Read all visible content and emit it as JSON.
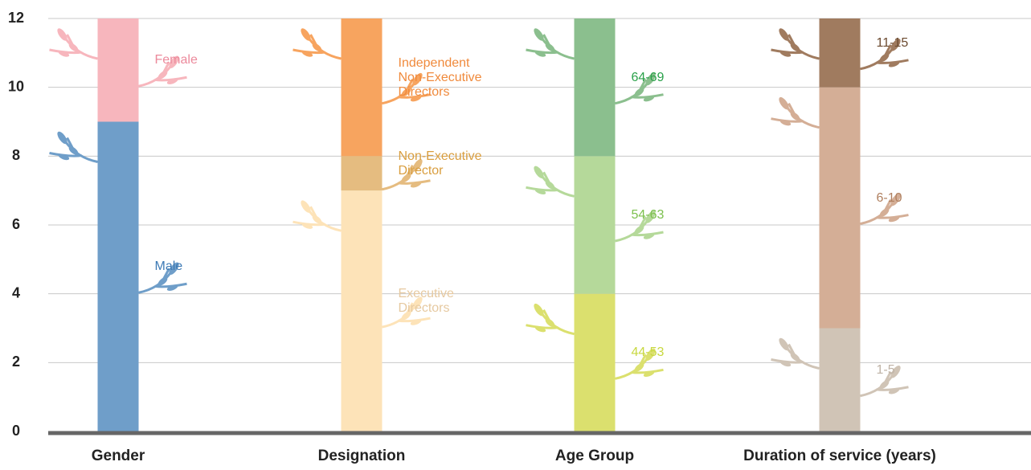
{
  "chart_data": {
    "type": "stacked-bar",
    "categories": [
      "Gender",
      "Designation",
      "Age Group",
      "Duration of service (years)"
    ],
    "ylim": [
      0,
      12
    ],
    "yticks": [
      0,
      2,
      4,
      6,
      8,
      10,
      12
    ],
    "grid": true,
    "series": [
      {
        "name": "Male",
        "color": "#6f9ec9",
        "label_color": "#3d7ab5",
        "values": [
          9,
          null,
          null,
          null
        ]
      },
      {
        "name": "Female",
        "color": "#f7b6bd",
        "label_color": "#ec8a9c",
        "values": [
          3,
          null,
          null,
          null
        ]
      },
      {
        "name": "Executive Directors",
        "color": "#fde3b8",
        "label_color": "#e6c9a0",
        "values": [
          null,
          7,
          null,
          null
        ]
      },
      {
        "name": "Non-Executive Director",
        "color": "#e5bc80",
        "label_color": "#d99e3f",
        "values": [
          null,
          1,
          null,
          null
        ]
      },
      {
        "name": "Independent Non-Executive Directors",
        "color": "#f7a45f",
        "label_color": "#f08a3c",
        "values": [
          null,
          4,
          null,
          null
        ]
      },
      {
        "name": "44-53",
        "color": "#dbe06e",
        "label_color": "#c8d840",
        "values": [
          null,
          null,
          4,
          null
        ]
      },
      {
        "name": "54-63",
        "color": "#b5d99a",
        "label_color": "#7cc04e",
        "values": [
          null,
          null,
          4,
          null
        ]
      },
      {
        "name": "64-69",
        "color": "#8bbf8e",
        "label_color": "#2aa14a",
        "values": [
          null,
          null,
          4,
          null
        ]
      },
      {
        "name": "1-5",
        "color": "#d0c4b6",
        "label_color": "#bfb3a6",
        "values": [
          null,
          null,
          null,
          3
        ]
      },
      {
        "name": "6-10",
        "color": "#d4ae96",
        "label_color": "#b08060",
        "values": [
          null,
          null,
          null,
          7
        ]
      },
      {
        "name": "11-15",
        "color": "#a07b5f",
        "label_color": "#6b4a2f",
        "values": [
          null,
          null,
          null,
          2
        ]
      }
    ]
  }
}
